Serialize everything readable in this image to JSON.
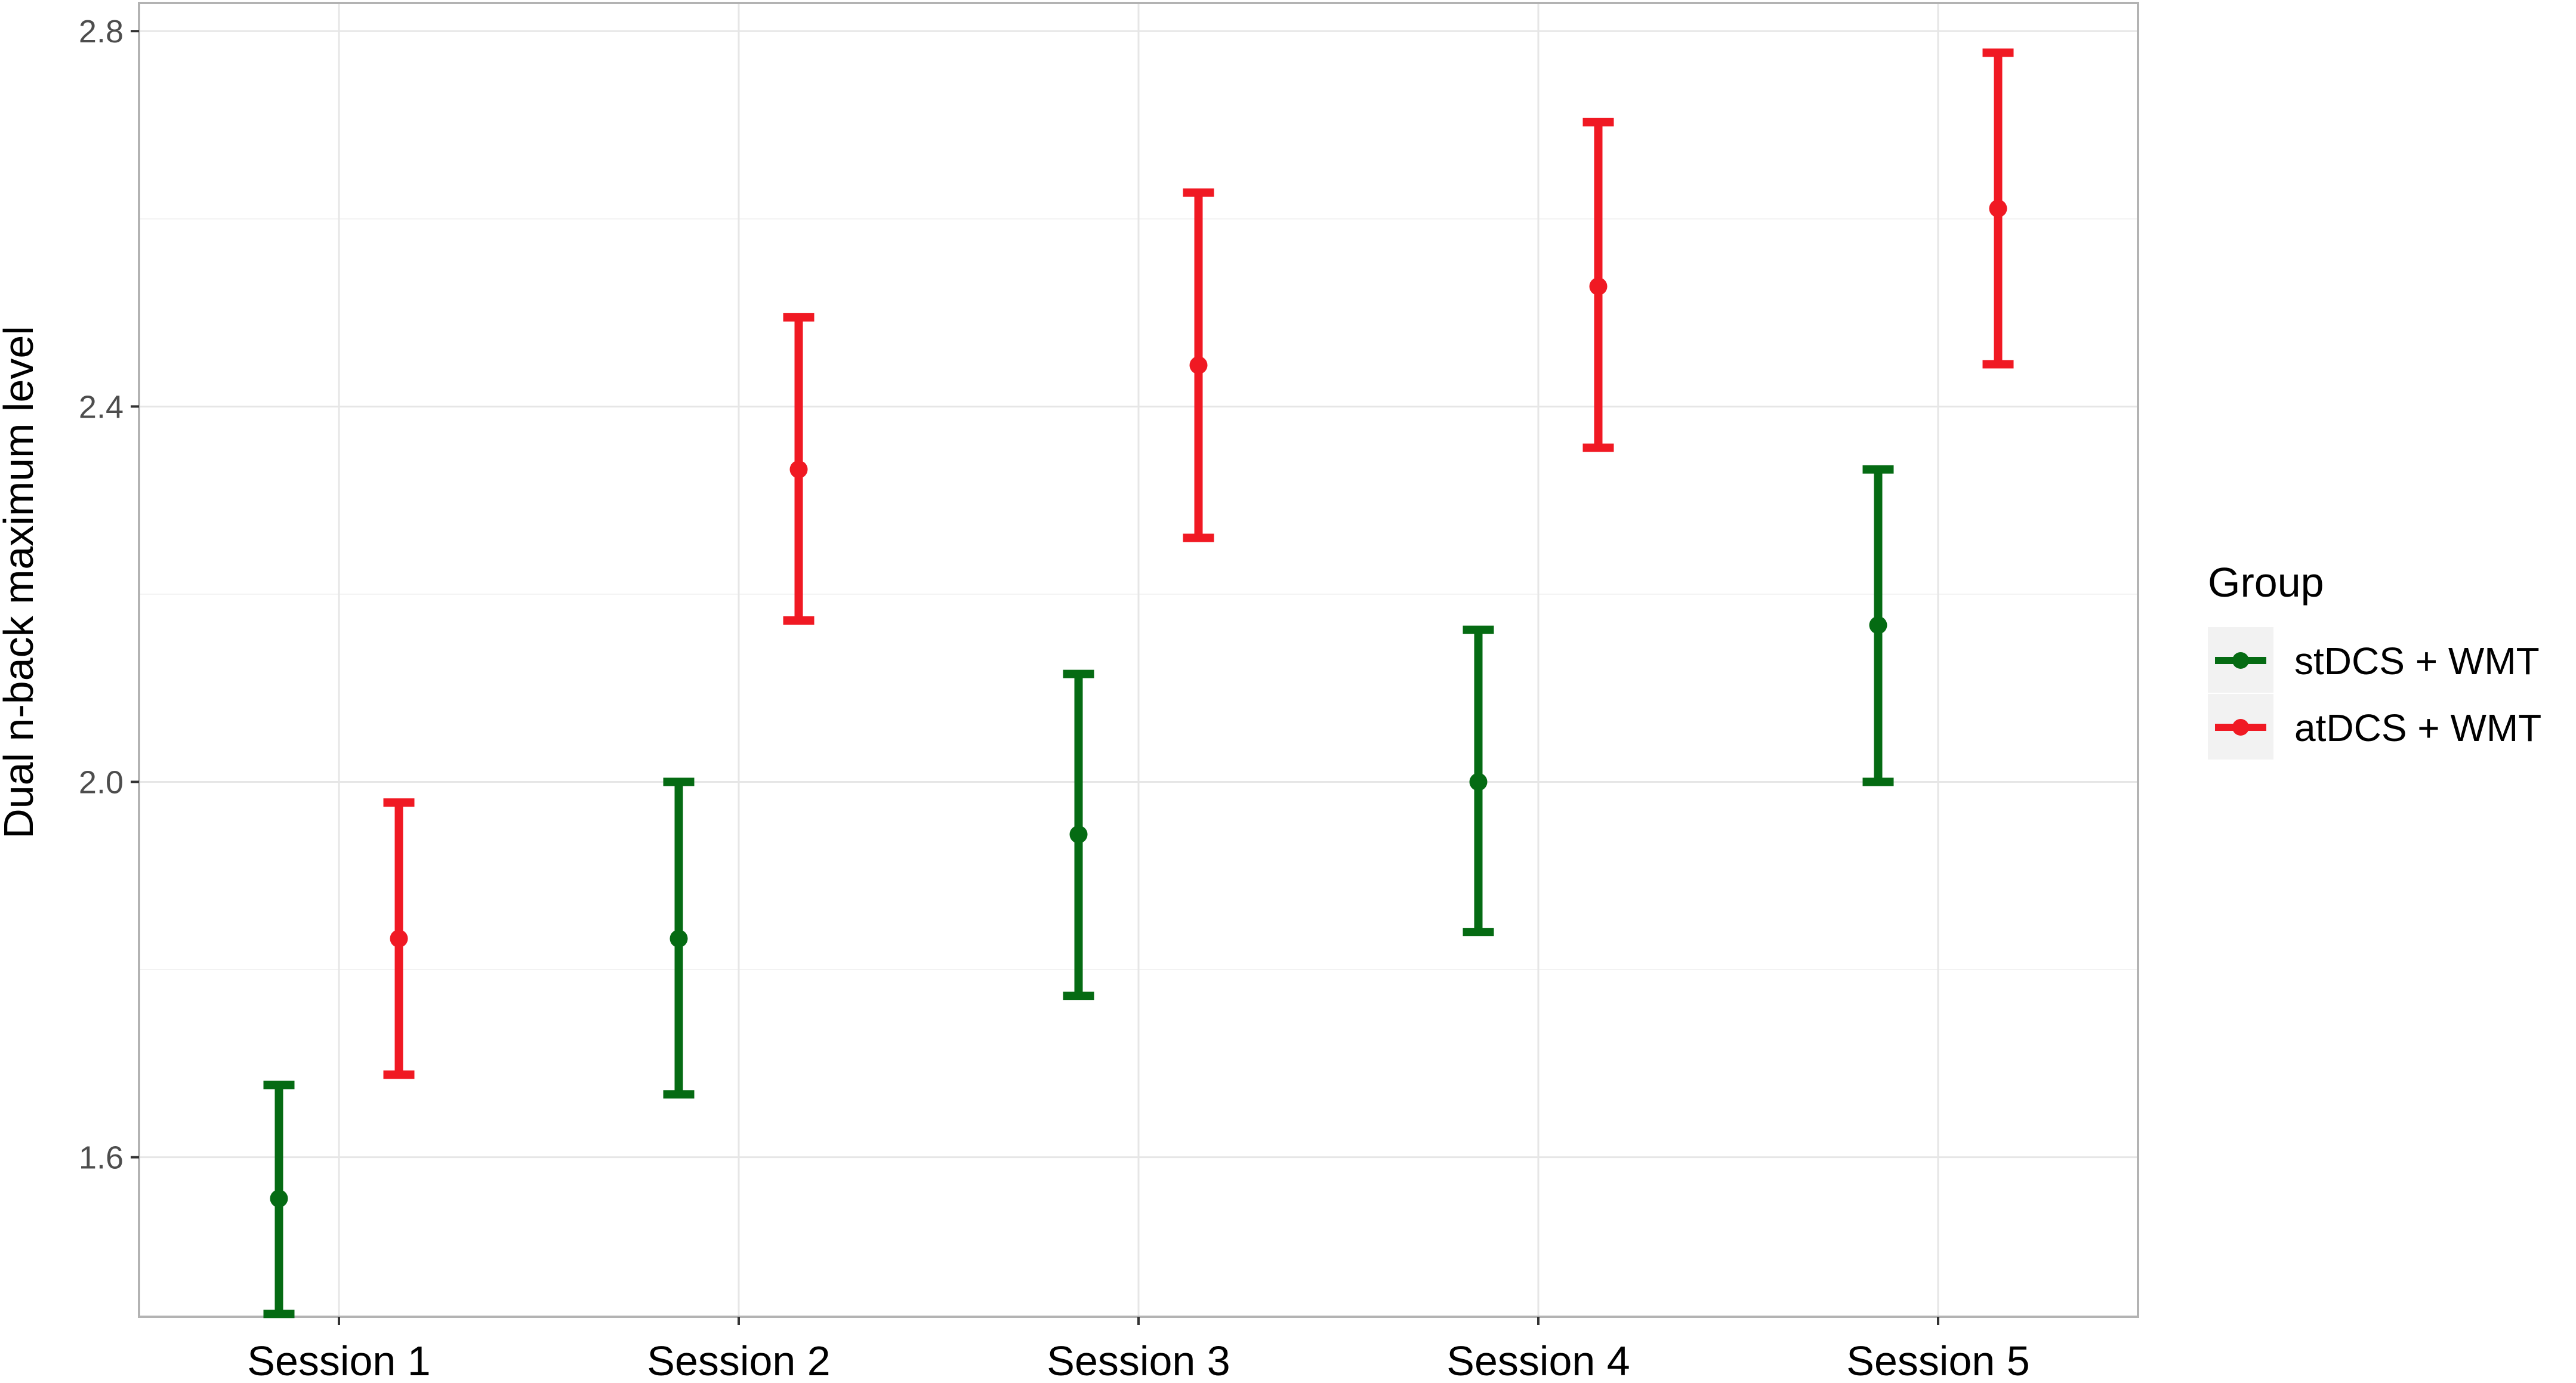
{
  "chart_data": {
    "type": "errorbar",
    "title": "",
    "xlabel": "",
    "ylabel": "Dual n-back maximum level",
    "categories": [
      "Session 1",
      "Session 2",
      "Session 3",
      "Session 4",
      "Session 5"
    ],
    "ylim": [
      1.43,
      2.83
    ],
    "yticks": [
      1.6,
      2.0,
      2.4,
      2.8
    ],
    "ytick_labels": [
      "1.6",
      "2.0",
      "2.4",
      "2.8"
    ],
    "grid": true,
    "legend": {
      "title": "Group",
      "position": "right"
    },
    "series": [
      {
        "name": "stDCS + WMT",
        "color": "#056b13",
        "mean": [
          1.556,
          1.833,
          1.944,
          2.0,
          2.167
        ],
        "lower": [
          1.433,
          1.667,
          1.772,
          1.84,
          2.0
        ],
        "upper": [
          1.677,
          2.0,
          2.115,
          2.162,
          2.333
        ]
      },
      {
        "name": "atDCS + WMT",
        "color": "#f01923",
        "mean": [
          1.833,
          2.333,
          2.444,
          2.528,
          2.611
        ],
        "lower": [
          1.688,
          2.172,
          2.26,
          2.356,
          2.445
        ],
        "upper": [
          1.978,
          2.495,
          2.628,
          2.703,
          2.777
        ]
      }
    ]
  }
}
